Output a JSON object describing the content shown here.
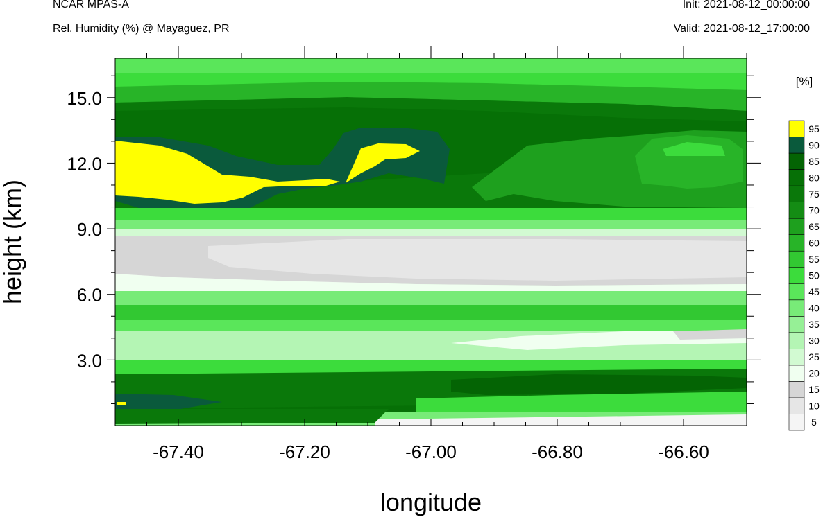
{
  "header": {
    "title_left": "NCAR MPAS-A",
    "subtitle_left": "Rel. Humidity (%) @ Mayaguez, PR",
    "title_right": "Init: 2021-08-12_00:00:00",
    "subtitle_right": "Valid: 2021-08-12_17:00:00"
  },
  "chart_data": {
    "type": "heatmap",
    "xlabel": "longitude",
    "ylabel": "height (km)",
    "xlim": [
      -67.5,
      -66.5
    ],
    "ylim": [
      0,
      16.8
    ],
    "x_ticks": [
      -67.4,
      -67.2,
      -67.0,
      -66.8,
      -66.6
    ],
    "x_tick_labels": [
      "-67.40",
      "-67.20",
      "-67.00",
      "-66.80",
      "-66.60"
    ],
    "y_ticks": [
      3,
      6,
      9,
      12,
      15
    ],
    "y_tick_labels": [
      "3.0",
      "6.0",
      "9.0",
      "12.0",
      "15.0"
    ],
    "colorbar": {
      "unit": "[%]",
      "levels": [
        "5",
        "10",
        "15",
        "20",
        "25",
        "30",
        "35",
        "40",
        "45",
        "50",
        "55",
        "60",
        "65",
        "70",
        "75",
        "80",
        "85",
        "90",
        "95"
      ],
      "colors": [
        "#f5f5f5",
        "#e6e6e6",
        "#d6d6d6",
        "#f0fff0",
        "#d2fad2",
        "#b4f5b4",
        "#96f096",
        "#78eb78",
        "#5ae65a",
        "#3cdc3c",
        "#32c832",
        "#28b428",
        "#1ea01e",
        "#148c14",
        "#0a780a",
        "#067006",
        "#046404",
        "#0a5a3c",
        "#ffff00"
      ]
    },
    "regions": [
      {
        "desc": "upper",
        "x": [
          -67.5,
          -66.5
        ],
        "y": [
          14.8,
          16.8
        ],
        "value": 55
      },
      {
        "x": [
          -67.5,
          -66.5
        ],
        "y": [
          14.0,
          15.0
        ],
        "value": 70
      },
      {
        "x": [
          -67.5,
          -66.5
        ],
        "y": [
          9.6,
          14.0
        ],
        "value": 85
      },
      {
        "x": [
          -67.5,
          -66.5
        ],
        "y": [
          9.0,
          9.6
        ],
        "value": 50
      },
      {
        "x": [
          -67.5,
          -66.5
        ],
        "y": [
          8.5,
          9.0
        ],
        "value": 25
      },
      {
        "x": [
          -67.5,
          -66.5
        ],
        "y": [
          6.5,
          8.5
        ],
        "value": 10
      },
      {
        "x": [
          -67.5,
          -66.5
        ],
        "y": [
          6.0,
          6.5
        ],
        "value": 25
      },
      {
        "x": [
          -67.5,
          -66.5
        ],
        "y": [
          4.8,
          6.0
        ],
        "value": 55
      },
      {
        "x": [
          -67.5,
          -66.5
        ],
        "y": [
          3.0,
          4.8
        ],
        "value": 35
      },
      {
        "x": [
          -67.5,
          -66.5
        ],
        "y": [
          2.0,
          3.0
        ],
        "value": 50
      },
      {
        "x": [
          -67.5,
          -66.5
        ],
        "y": [
          0.3,
          2.0
        ],
        "value": 80
      },
      {
        "x": [
          -67.5,
          -66.5
        ],
        "y": [
          0.0,
          0.3
        ],
        "value": 45
      }
    ]
  }
}
